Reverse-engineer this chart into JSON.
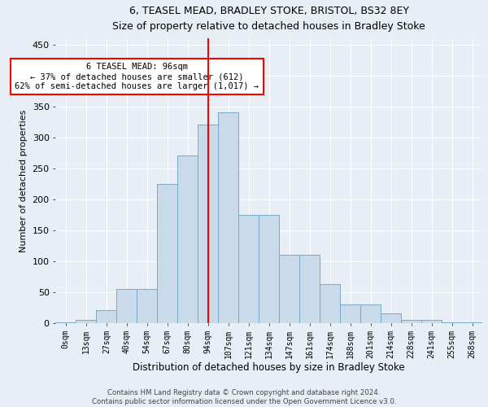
{
  "title1": "6, TEASEL MEAD, BRADLEY STOKE, BRISTOL, BS32 8EY",
  "title2": "Size of property relative to detached houses in Bradley Stoke",
  "xlabel": "Distribution of detached houses by size in Bradley Stoke",
  "ylabel": "Number of detached properties",
  "categories": [
    "0sqm",
    "13sqm",
    "27sqm",
    "40sqm",
    "54sqm",
    "67sqm",
    "80sqm",
    "94sqm",
    "107sqm",
    "121sqm",
    "134sqm",
    "147sqm",
    "161sqm",
    "174sqm",
    "188sqm",
    "201sqm",
    "214sqm",
    "228sqm",
    "241sqm",
    "255sqm",
    "268sqm"
  ],
  "values": [
    1,
    5,
    20,
    55,
    55,
    225,
    270,
    320,
    340,
    175,
    175,
    110,
    110,
    62,
    30,
    30,
    15,
    5,
    5,
    1,
    1
  ],
  "bar_color": "#c9daea",
  "bar_edge_color": "#7aaac8",
  "vline_index": 7,
  "vline_color": "red",
  "annotation_text": "6 TEASEL MEAD: 96sqm\n← 37% of detached houses are smaller (612)\n62% of semi-detached houses are larger (1,017) →",
  "annotation_box_color": "white",
  "annotation_box_edge": "red",
  "ylim": [
    0,
    460
  ],
  "yticks": [
    0,
    50,
    100,
    150,
    200,
    250,
    300,
    350,
    400,
    450
  ],
  "footer1": "Contains HM Land Registry data © Crown copyright and database right 2024.",
  "footer2": "Contains public sector information licensed under the Open Government Licence v3.0.",
  "bg_color": "#e8eef5",
  "plot_bg_color": "#e8eef5",
  "grid_color": "white"
}
